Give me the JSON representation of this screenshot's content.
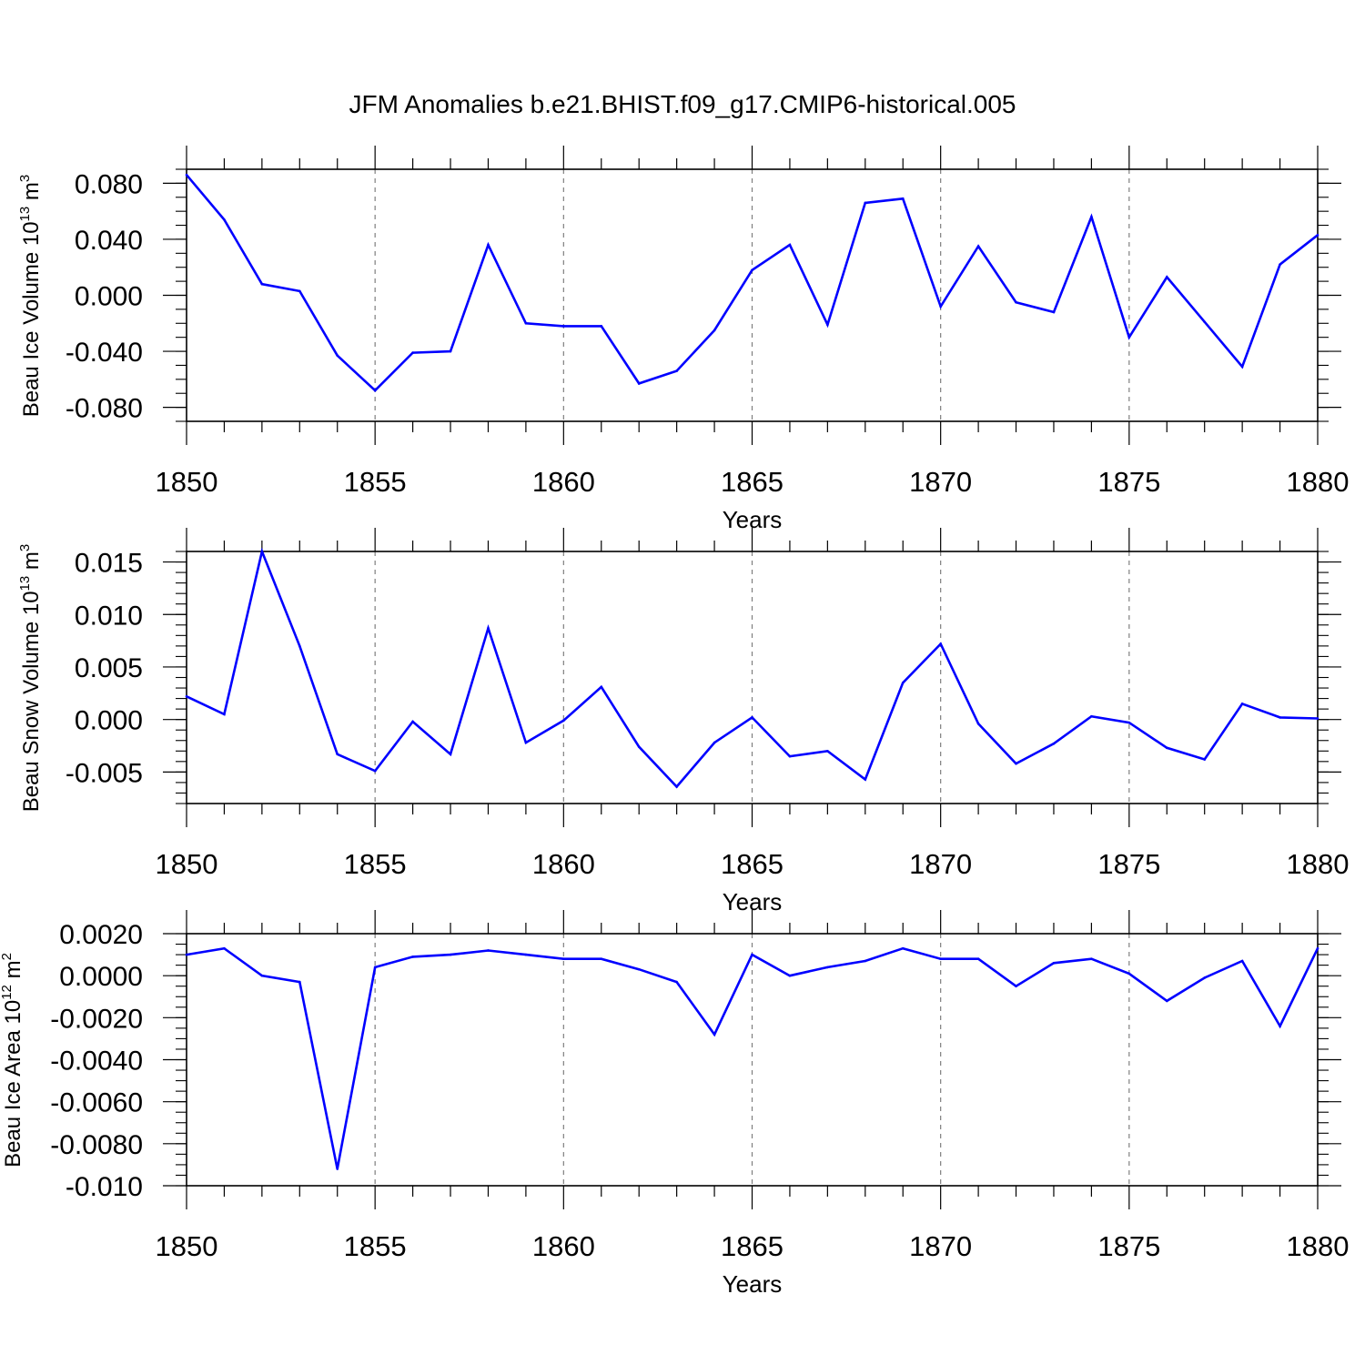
{
  "figure_title": "JFM Anomalies b.e21.BHIST.f09_g17.CMIP6-historical.005",
  "colors": {
    "series": "#0000ff",
    "axis": "#000000",
    "grid": "#7f7f7f",
    "background": "#ffffff"
  },
  "chart_data": [
    {
      "type": "line",
      "title": "JFM Anomalies b.e21.BHIST.f09_g17.CMIP6-historical.005",
      "xlabel": "Years",
      "ylabel": {
        "text": "Beau Ice Volume 10",
        "exp1": "13",
        "unit": " m",
        "exp2": "3"
      },
      "xlim": [
        1850,
        1880
      ],
      "ylim": [
        -0.09,
        0.09
      ],
      "x_ticks": [
        1850,
        1855,
        1860,
        1865,
        1870,
        1875,
        1880
      ],
      "y_ticks": [
        -0.08,
        -0.04,
        0.0,
        0.04,
        0.08
      ],
      "y_tick_labels": [
        "-0.080",
        "-0.040",
        "0.000",
        "0.040",
        "0.080"
      ],
      "y_minor_step": 0.01,
      "x_grid": "vertical dashed at major ticks",
      "series": [
        {
          "name": "Beau Ice Volume",
          "x": [
            1850,
            1851,
            1852,
            1853,
            1854,
            1855,
            1856,
            1857,
            1858,
            1859,
            1860,
            1861,
            1862,
            1863,
            1864,
            1865,
            1866,
            1867,
            1868,
            1869,
            1870,
            1871,
            1872,
            1873,
            1874,
            1875,
            1876,
            1877,
            1878,
            1879,
            1880
          ],
          "values": [
            0.086,
            0.054,
            0.008,
            0.003,
            -0.043,
            -0.068,
            -0.041,
            -0.04,
            0.036,
            -0.02,
            -0.022,
            -0.022,
            -0.063,
            -0.054,
            -0.025,
            0.018,
            0.036,
            -0.021,
            0.066,
            0.069,
            -0.008,
            0.035,
            -0.005,
            -0.012,
            0.056,
            -0.03,
            0.013,
            -0.019,
            -0.051,
            0.022,
            0.043
          ]
        }
      ]
    },
    {
      "type": "line",
      "xlabel": "Years",
      "ylabel": {
        "text": "Beau Snow Volume 10",
        "exp1": "13",
        "unit": " m",
        "exp2": "3"
      },
      "xlim": [
        1850,
        1880
      ],
      "ylim": [
        -0.008,
        0.016
      ],
      "x_ticks": [
        1850,
        1855,
        1860,
        1865,
        1870,
        1875,
        1880
      ],
      "y_ticks": [
        -0.005,
        0.0,
        0.005,
        0.01,
        0.015
      ],
      "y_tick_labels": [
        "-0.005",
        "0.000",
        "0.005",
        "0.010",
        "0.015"
      ],
      "y_minor_step": 0.001,
      "x_grid": "vertical dashed at major ticks",
      "series": [
        {
          "name": "Beau Snow Volume",
          "x": [
            1850,
            1851,
            1852,
            1853,
            1854,
            1855,
            1856,
            1857,
            1858,
            1859,
            1860,
            1861,
            1862,
            1863,
            1864,
            1865,
            1866,
            1867,
            1868,
            1869,
            1870,
            1871,
            1872,
            1873,
            1874,
            1875,
            1876,
            1877,
            1878,
            1879,
            1880
          ],
          "values": [
            0.0022,
            0.0005,
            0.016,
            0.007,
            -0.0033,
            -0.0049,
            -0.0002,
            -0.0033,
            0.0087,
            -0.0022,
            -0.0001,
            0.0031,
            -0.0026,
            -0.0064,
            -0.0022,
            0.0002,
            -0.0035,
            -0.003,
            -0.0057,
            0.0035,
            0.0072,
            -0.0004,
            -0.0042,
            -0.0023,
            0.0003,
            -0.0003,
            -0.0027,
            -0.0038,
            0.0015,
            0.0002,
            0.0001
          ]
        }
      ]
    },
    {
      "type": "line",
      "xlabel": "Years",
      "ylabel": {
        "text": "Beau Ice Area 10",
        "exp1": "12",
        "unit": " m",
        "exp2": "2"
      },
      "xlim": [
        1850,
        1880
      ],
      "ylim": [
        -0.01,
        0.002
      ],
      "x_ticks": [
        1850,
        1855,
        1860,
        1865,
        1870,
        1875,
        1880
      ],
      "y_ticks": [
        -0.01,
        -0.008,
        -0.006,
        -0.004,
        -0.002,
        0.0,
        0.002
      ],
      "y_tick_labels": [
        "-0.010",
        "-0.0080",
        "-0.0060",
        "-0.0040",
        "-0.0020",
        "0.0000",
        "0.0020"
      ],
      "y_minor_step": 0.0005,
      "x_grid": "vertical dashed at major ticks",
      "series": [
        {
          "name": "Beau Ice Area",
          "x": [
            1850,
            1851,
            1852,
            1853,
            1854,
            1855,
            1856,
            1857,
            1858,
            1859,
            1860,
            1861,
            1862,
            1863,
            1864,
            1865,
            1866,
            1867,
            1868,
            1869,
            1870,
            1871,
            1872,
            1873,
            1874,
            1875,
            1876,
            1877,
            1878,
            1879,
            1880
          ],
          "values": [
            0.001,
            0.0013,
            0.0,
            -0.0003,
            -0.0092,
            0.0004,
            0.0009,
            0.001,
            0.0012,
            0.001,
            0.0008,
            0.0008,
            0.0003,
            -0.0003,
            -0.0028,
            0.001,
            0.0,
            0.0004,
            0.0007,
            0.0013,
            0.0008,
            0.0008,
            -0.0005,
            0.0006,
            0.0008,
            0.0001,
            -0.0012,
            -0.0001,
            0.0007,
            -0.0024,
            0.0013
          ]
        }
      ]
    }
  ]
}
